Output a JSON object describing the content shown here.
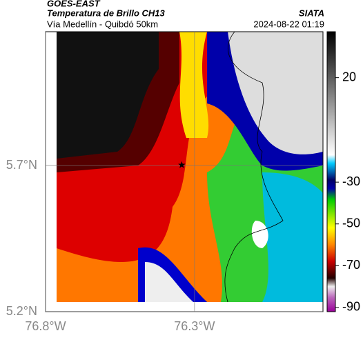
{
  "header": {
    "source": "GOES-EAST",
    "title": "Temperatura de Brillo CH13",
    "subtitle": "Vía Medellín - Quibdó 50km",
    "org": "SIATA",
    "datetime": "2024-08-22 01:19"
  },
  "map": {
    "xlim": [
      -76.8,
      -75.869
    ],
    "ylim": [
      5.2,
      6.158
    ],
    "xticks": [
      {
        "value": -76.8,
        "label": "76.8°W"
      },
      {
        "value": -76.3,
        "label": "76.3°W"
      }
    ],
    "yticks": [
      {
        "value": 5.2,
        "label": "5.2°N"
      },
      {
        "value": 5.7,
        "label": "5.7°N"
      }
    ],
    "marker": {
      "lon": -76.343,
      "lat": 5.702
    }
  },
  "colorbar": {
    "lim": [
      -92,
      42
    ],
    "ticks": [
      20,
      -30,
      -50,
      -70,
      -90
    ]
  }
}
